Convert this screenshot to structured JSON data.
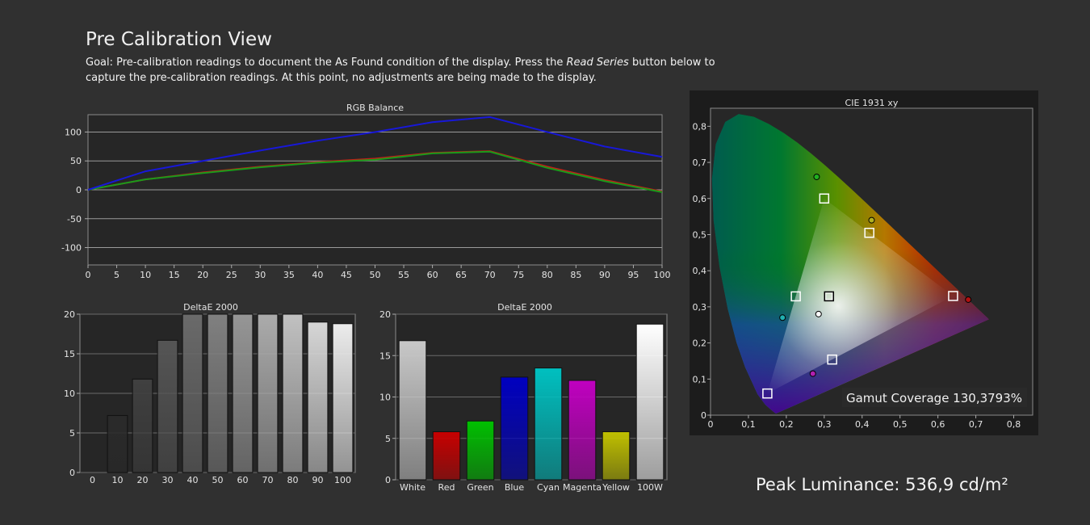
{
  "header": {
    "title": "Pre Calibration View",
    "goal_prefix": "Goal: Pre-calibration readings to document the As Found condition of the display. Press the ",
    "goal_emphasis": "Read Series",
    "goal_suffix": " button below to capture the pre-calibration readings. At this point, no adjustments are being made to the display."
  },
  "peak_luminance": {
    "label": "Peak Luminance: 536,9 cd/m²"
  },
  "gamut": {
    "label": "Gamut Coverage 130,3793%"
  },
  "chart_data": [
    {
      "type": "line",
      "title": "RGB Balance",
      "x": [
        0,
        10,
        20,
        30,
        40,
        50,
        60,
        70,
        80,
        90,
        100
      ],
      "xticks": [
        "0",
        "5",
        "10",
        "15",
        "20",
        "25",
        "30",
        "35",
        "40",
        "45",
        "50",
        "55",
        "60",
        "65",
        "70",
        "75",
        "80",
        "85",
        "90",
        "95",
        "100"
      ],
      "yticks": [
        "100",
        "50",
        "0",
        "-50",
        "-100"
      ],
      "xlim": [
        0,
        100
      ],
      "ylim": [
        -130,
        130
      ],
      "grid": true,
      "series": [
        {
          "color": "#c02018",
          "values": [
            0,
            18,
            30,
            40,
            48,
            54,
            64,
            67,
            40,
            17,
            -3
          ]
        },
        {
          "color": "#1a9a1a",
          "values": [
            0,
            18,
            29,
            39,
            47,
            52,
            63,
            66,
            38,
            15,
            -4
          ]
        },
        {
          "color": "#1818d8",
          "values": [
            0,
            32,
            50,
            68,
            85,
            100,
            117,
            126,
            100,
            75,
            57
          ]
        }
      ]
    },
    {
      "type": "bar",
      "title": "DeltaE 2000",
      "categories": [
        "0",
        "10",
        "20",
        "30",
        "40",
        "50",
        "60",
        "70",
        "80",
        "90",
        "100"
      ],
      "values": [
        0,
        7.2,
        11.8,
        16.7,
        20,
        20,
        20,
        20,
        20,
        19,
        18.8
      ],
      "colors": [
        "#000000",
        "#2a2a2a",
        "#404040",
        "#555555",
        "#6a6a6a",
        "#808080",
        "#969696",
        "#ababab",
        "#c1c1c1",
        "#d6d6d6",
        "#ececec"
      ],
      "yticks": [
        "20",
        "15",
        "10",
        "5",
        "0"
      ],
      "ylim": [
        0,
        20
      ]
    },
    {
      "type": "bar",
      "title": "DeltaE 2000",
      "categories": [
        "White",
        "Red",
        "Green",
        "Blue",
        "Cyan",
        "Magenta",
        "Yellow",
        "100W"
      ],
      "values": [
        16.8,
        5.8,
        7.1,
        12.4,
        13.5,
        12,
        5.8,
        18.8
      ],
      "colors": [
        "#c8c8c8",
        "#c80000",
        "#00c000",
        "#0000c0",
        "#00c0c0",
        "#c000c0",
        "#c0c000",
        "#ffffff"
      ],
      "yticks": [
        "20",
        "15",
        "10",
        "5",
        "0"
      ],
      "ylim": [
        0,
        20
      ]
    },
    {
      "type": "scatter",
      "title": "CIE 1931 xy",
      "xticks": [
        "0",
        "0,1",
        "0,2",
        "0,3",
        "0,4",
        "0,5",
        "0,6",
        "0,7",
        "0,8"
      ],
      "yticks": [
        "0,8",
        "0,7",
        "0,6",
        "0,5",
        "0,4",
        "0,3",
        "0,2",
        "0,1",
        "0"
      ],
      "xlim": [
        0,
        0.85
      ],
      "ylim": [
        0,
        0.85
      ],
      "targets": [
        {
          "x": 0.64,
          "y": 0.33
        },
        {
          "x": 0.3,
          "y": 0.6
        },
        {
          "x": 0.15,
          "y": 0.06
        },
        {
          "x": 0.225,
          "y": 0.329
        },
        {
          "x": 0.321,
          "y": 0.154
        },
        {
          "x": 0.419,
          "y": 0.505
        },
        {
          "x": 0.3127,
          "y": 0.329
        }
      ],
      "measured": [
        {
          "x": 0.68,
          "y": 0.32,
          "color": "#b01010"
        },
        {
          "x": 0.28,
          "y": 0.66,
          "color": "#20b020"
        },
        {
          "x": 0.19,
          "y": 0.27,
          "color": "#20b0b0"
        },
        {
          "x": 0.27,
          "y": 0.115,
          "color": "#b020b0"
        },
        {
          "x": 0.425,
          "y": 0.54,
          "color": "#b0b020"
        },
        {
          "x": 0.285,
          "y": 0.28,
          "color": "#ffffff"
        }
      ]
    }
  ]
}
